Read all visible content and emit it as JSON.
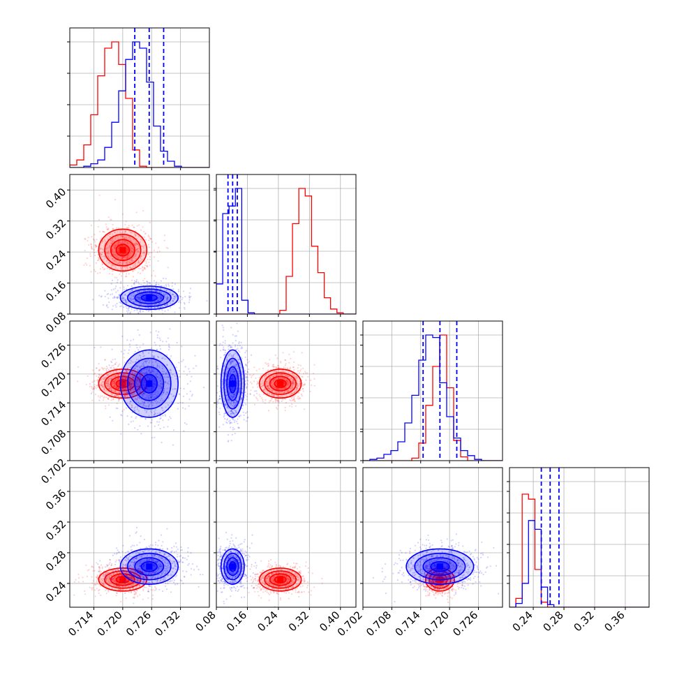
{
  "colors": {
    "series_red": "#ff0000",
    "series_blue": "#0000ff",
    "grid": "#b0b0b0",
    "frame": "#000000"
  },
  "chart_data": {
    "type": "corner",
    "grid": true,
    "parameters": [
      {
        "id": "p0",
        "range": [
          0.709,
          0.738
        ],
        "ticks": [
          "0.714",
          "0.720",
          "0.726",
          "0.732"
        ]
      },
      {
        "id": "p1",
        "range": [
          0.08,
          0.44
        ],
        "ticks": [
          "0.08",
          "0.16",
          "0.24",
          "0.32",
          "0.40"
        ]
      },
      {
        "id": "p2",
        "range": [
          0.702,
          0.731
        ],
        "ticks": [
          "0.702",
          "0.708",
          "0.714",
          "0.720",
          "0.726"
        ]
      },
      {
        "id": "p3",
        "range": [
          0.209,
          0.391
        ],
        "ticks": [
          "0.24",
          "0.28",
          "0.32",
          "0.36"
        ]
      }
    ],
    "series": [
      {
        "name": "",
        "color": "red",
        "means": [
          0.72,
          0.245,
          0.718,
          0.245
        ],
        "sigmas": [
          0.0025,
          0.027,
          0.0015,
          0.0075
        ],
        "histograms": [
          [
            2,
            6,
            18,
            42,
            73,
            95,
            100,
            82,
            55,
            14,
            1,
            0,
            0,
            0,
            0,
            0,
            0,
            0,
            0,
            0
          ],
          [
            0,
            0,
            0,
            0,
            0,
            0,
            0,
            0,
            0,
            0,
            3,
            30,
            72,
            100,
            94,
            54,
            33,
            13,
            4,
            1,
            0,
            0
          ],
          [
            0,
            0,
            0,
            0,
            0,
            0,
            0,
            2,
            14,
            44,
            75,
            100,
            58,
            16,
            3,
            0,
            0,
            0,
            0,
            0
          ],
          [
            0,
            7,
            90,
            86,
            30,
            4,
            0,
            0,
            0,
            0,
            0,
            0,
            0,
            0,
            0,
            0,
            0,
            0,
            0,
            0,
            0,
            0
          ]
        ]
      },
      {
        "name": "",
        "color": "blue",
        "means": [
          0.7255,
          0.122,
          0.718,
          0.262
        ],
        "sigmas": [
          0.003,
          0.015,
          0.0035,
          0.0115
        ],
        "histograms": [
          [
            0,
            0,
            1,
            3,
            6,
            16,
            36,
            61,
            86,
            100,
            95,
            68,
            33,
            13,
            5,
            1,
            0,
            0,
            0,
            0
          ],
          [
            24,
            80,
            86,
            100,
            11,
            1,
            0,
            0,
            0,
            0,
            0,
            0,
            0,
            0,
            0,
            0,
            0,
            0,
            0,
            0,
            0,
            0
          ],
          [
            0,
            1,
            2,
            5,
            8,
            15,
            30,
            52,
            80,
            100,
            98,
            62,
            35,
            18,
            8,
            4,
            1,
            0,
            0,
            0
          ],
          [
            0,
            3,
            19,
            69,
            62,
            16,
            2,
            0,
            0,
            0,
            0,
            0,
            0,
            0,
            0,
            0,
            0,
            0,
            0,
            0,
            0,
            0
          ]
        ]
      }
    ],
    "quantile_lines": [
      [
        0.7225,
        0.7255,
        0.7285
      ],
      [
        0.11,
        0.122,
        0.134
      ],
      [
        0.7145,
        0.718,
        0.7215
      ],
      [
        0.2505,
        0.262,
        0.2735
      ]
    ]
  }
}
